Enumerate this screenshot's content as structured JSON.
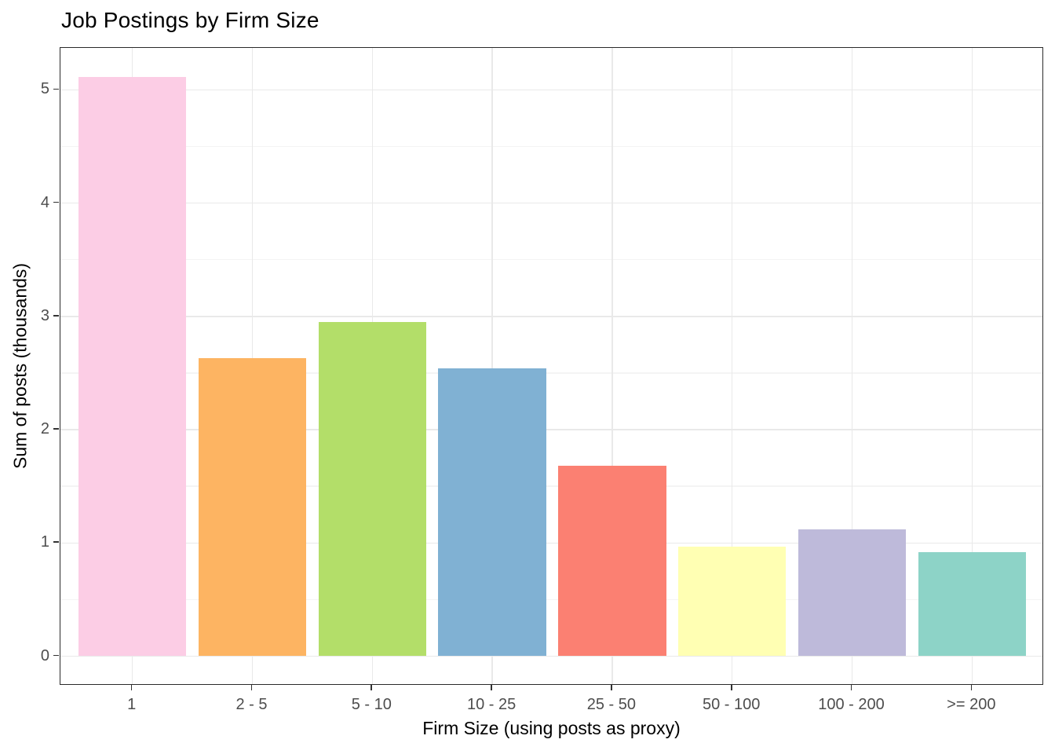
{
  "chart_data": {
    "type": "bar",
    "title": "Job Postings by Firm Size",
    "xlabel": "Firm Size (using posts as proxy)",
    "ylabel": "Sum of posts (thousands)",
    "categories": [
      "1",
      "2 - 5",
      "5 - 10",
      "10 - 25",
      "25 - 50",
      "50 - 100",
      "100 - 200",
      ">= 200"
    ],
    "values": [
      5.11,
      2.63,
      2.95,
      2.54,
      1.68,
      0.97,
      1.12,
      0.92
    ],
    "bar_colors": [
      "#FCCDE5",
      "#FDB462",
      "#B3DE69",
      "#80B1D3",
      "#FB8072",
      "#FFFFB3",
      "#BEBADA",
      "#8DD3C7"
    ],
    "yticks": [
      "0",
      "1",
      "2",
      "3",
      "4",
      "5"
    ],
    "ylim": [
      -0.26,
      5.37
    ],
    "grid": "major-and-minor",
    "legend": false,
    "styles": {
      "background": "#ffffff",
      "panel_border": "#2b2b2b",
      "grid_major": "#e9e9e9",
      "grid_minor": "#f4f4f4",
      "tick_mark": "#333333",
      "tick_label": "#4d4d4d",
      "text": "#000000"
    }
  }
}
